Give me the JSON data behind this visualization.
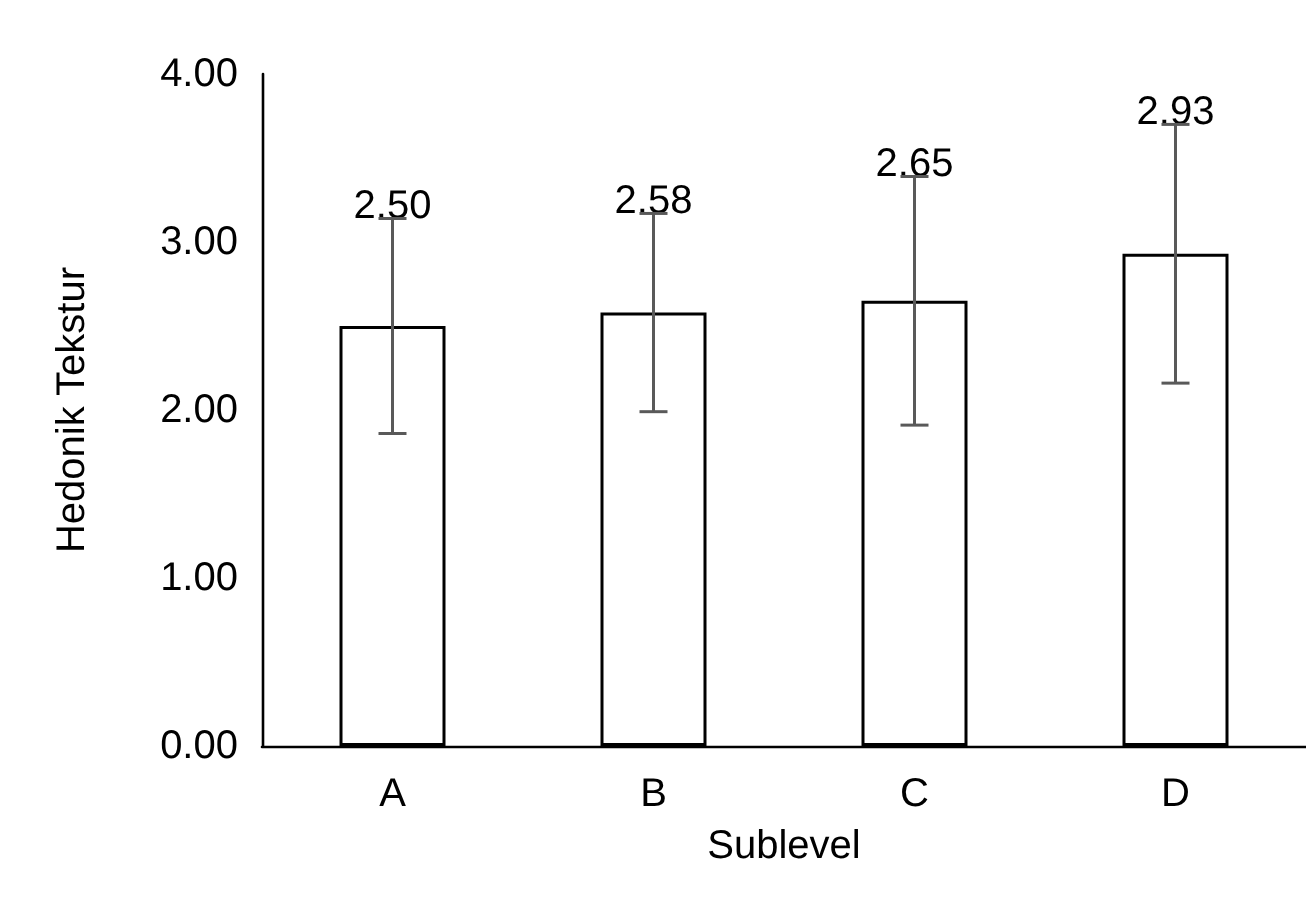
{
  "chart_data": {
    "type": "bar",
    "xlabel": "Sublevel",
    "ylabel": "Hedonik Tekstur",
    "categories": [
      "A",
      "B",
      "C",
      "D"
    ],
    "values": [
      2.5,
      2.58,
      2.65,
      2.93
    ],
    "value_labels": [
      "2.50",
      "2.58",
      "2.65",
      "2.93"
    ],
    "errors": [
      0.64,
      0.59,
      0.74,
      0.77
    ],
    "color": "#ffffff",
    "ylim": [
      0,
      4
    ],
    "yticks": [
      {
        "value": 0,
        "label": "0.00"
      },
      {
        "value": 1,
        "label": "1.00"
      },
      {
        "value": 2,
        "label": "2.00"
      },
      {
        "value": 3,
        "label": "3.00"
      },
      {
        "value": 4,
        "label": "4.00"
      }
    ],
    "grid": false
  }
}
